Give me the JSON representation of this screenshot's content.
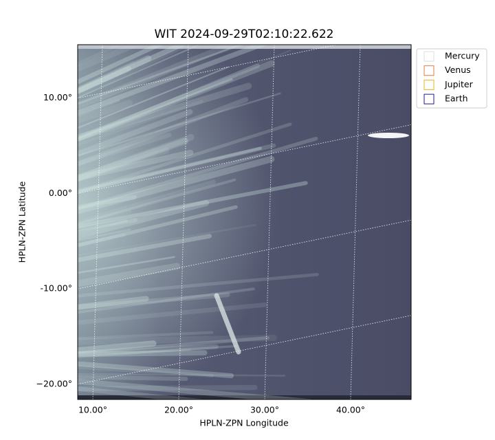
{
  "chart_data": {
    "type": "image",
    "title": "WIT 2024-09-29T02:10:22.622",
    "x_label": "HPLN-ZPN Longitude",
    "y_label": "HPLN-ZPN Latitude",
    "xlim": [
      8.24,
      47.04
    ],
    "ylim": [
      -21.6,
      15.6
    ],
    "xticks": [
      {
        "value": 10,
        "label": "10.00°"
      },
      {
        "value": 20,
        "label": "20.00°"
      },
      {
        "value": 30,
        "label": "30.00°"
      },
      {
        "value": 40,
        "label": "40.00°"
      }
    ],
    "yticks": [
      {
        "value": 10,
        "label": "10.00°"
      },
      {
        "value": 0,
        "label": "0.00°"
      },
      {
        "value": -10,
        "label": "-10.00°"
      },
      {
        "value": -20,
        "label": "−20.00°"
      }
    ],
    "grid": true,
    "legend_position": "outside-upper-right",
    "series": [
      {
        "name": "Mercury",
        "color": "#dddddd"
      },
      {
        "name": "Venus",
        "color": "#e07b39"
      },
      {
        "name": "Jupiter",
        "color": "#e8b020"
      },
      {
        "name": "Earth",
        "color": "#1a1a80"
      }
    ]
  }
}
